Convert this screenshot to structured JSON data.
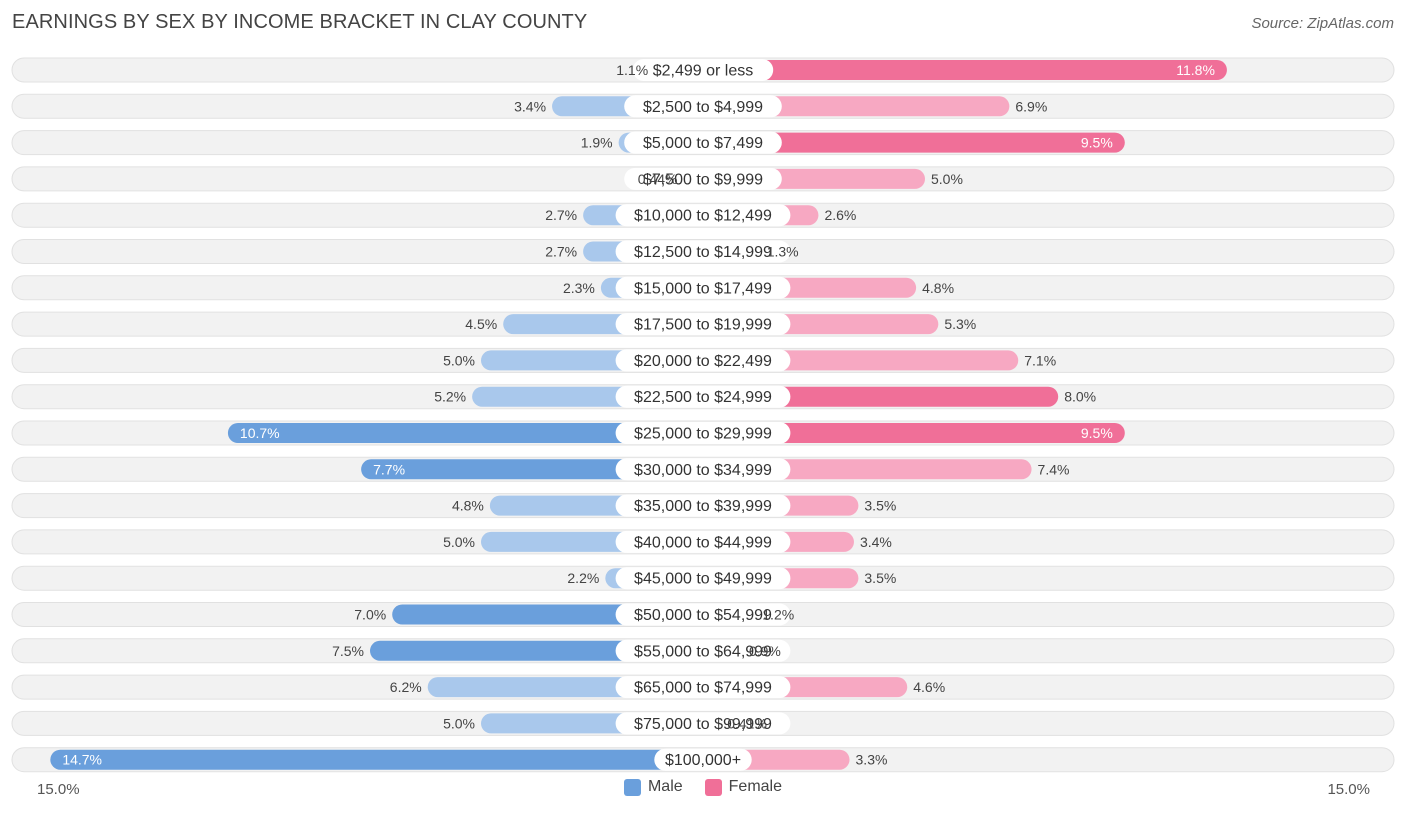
{
  "chart_data": {
    "type": "bar",
    "orientation": "horizontal-diverging",
    "title": "EARNINGS BY SEX BY INCOME BRACKET IN CLAY COUNTY",
    "source": "Source: ZipAtlas.com",
    "categories": [
      "$2,499 or less",
      "$2,500 to $4,999",
      "$5,000 to $7,499",
      "$7,500 to $9,999",
      "$10,000 to $12,499",
      "$12,500 to $14,999",
      "$15,000 to $17,499",
      "$17,500 to $19,999",
      "$20,000 to $22,499",
      "$22,500 to $24,999",
      "$25,000 to $29,999",
      "$30,000 to $34,999",
      "$35,000 to $39,999",
      "$40,000 to $44,999",
      "$45,000 to $49,999",
      "$50,000 to $54,999",
      "$55,000 to $64,999",
      "$65,000 to $74,999",
      "$75,000 to $99,999",
      "$100,000+"
    ],
    "series": [
      {
        "name": "Male",
        "values": [
          1.1,
          3.4,
          1.9,
          0.44,
          2.7,
          2.7,
          2.3,
          4.5,
          5.0,
          5.2,
          10.7,
          7.7,
          4.8,
          5.0,
          2.2,
          7.0,
          7.5,
          6.2,
          5.0,
          14.7
        ],
        "labels": [
          "1.1%",
          "3.4%",
          "1.9%",
          "0.44%",
          "2.7%",
          "2.7%",
          "2.3%",
          "4.5%",
          "5.0%",
          "5.2%",
          "10.7%",
          "7.7%",
          "4.8%",
          "5.0%",
          "2.2%",
          "7.0%",
          "7.5%",
          "6.2%",
          "5.0%",
          "14.7%"
        ]
      },
      {
        "name": "Female",
        "values": [
          11.8,
          6.9,
          9.5,
          5.0,
          2.6,
          1.3,
          4.8,
          5.3,
          7.1,
          8.0,
          9.5,
          7.4,
          3.5,
          3.4,
          3.5,
          1.2,
          0.9,
          4.6,
          0.41,
          3.3
        ],
        "labels": [
          "11.8%",
          "6.9%",
          "9.5%",
          "5.0%",
          "2.6%",
          "1.3%",
          "4.8%",
          "5.3%",
          "7.1%",
          "8.0%",
          "9.5%",
          "7.4%",
          "3.5%",
          "3.4%",
          "3.5%",
          "1.2%",
          "0.9%",
          "4.6%",
          "0.41%",
          "3.3%"
        ]
      }
    ],
    "axis": {
      "max": 15.0,
      "left_label": "15.0%",
      "right_label": "15.0%"
    },
    "legend": [
      "Male",
      "Female"
    ],
    "legend_placement": "bottom-center",
    "colors": {
      "male_light": "#a9c8ec",
      "male_dark": "#6a9fdc",
      "female_light": "#f7a8c2",
      "female_dark": "#f06f98",
      "row_bg": "#f2f2f2",
      "row_border": "#e1e1e1"
    }
  }
}
